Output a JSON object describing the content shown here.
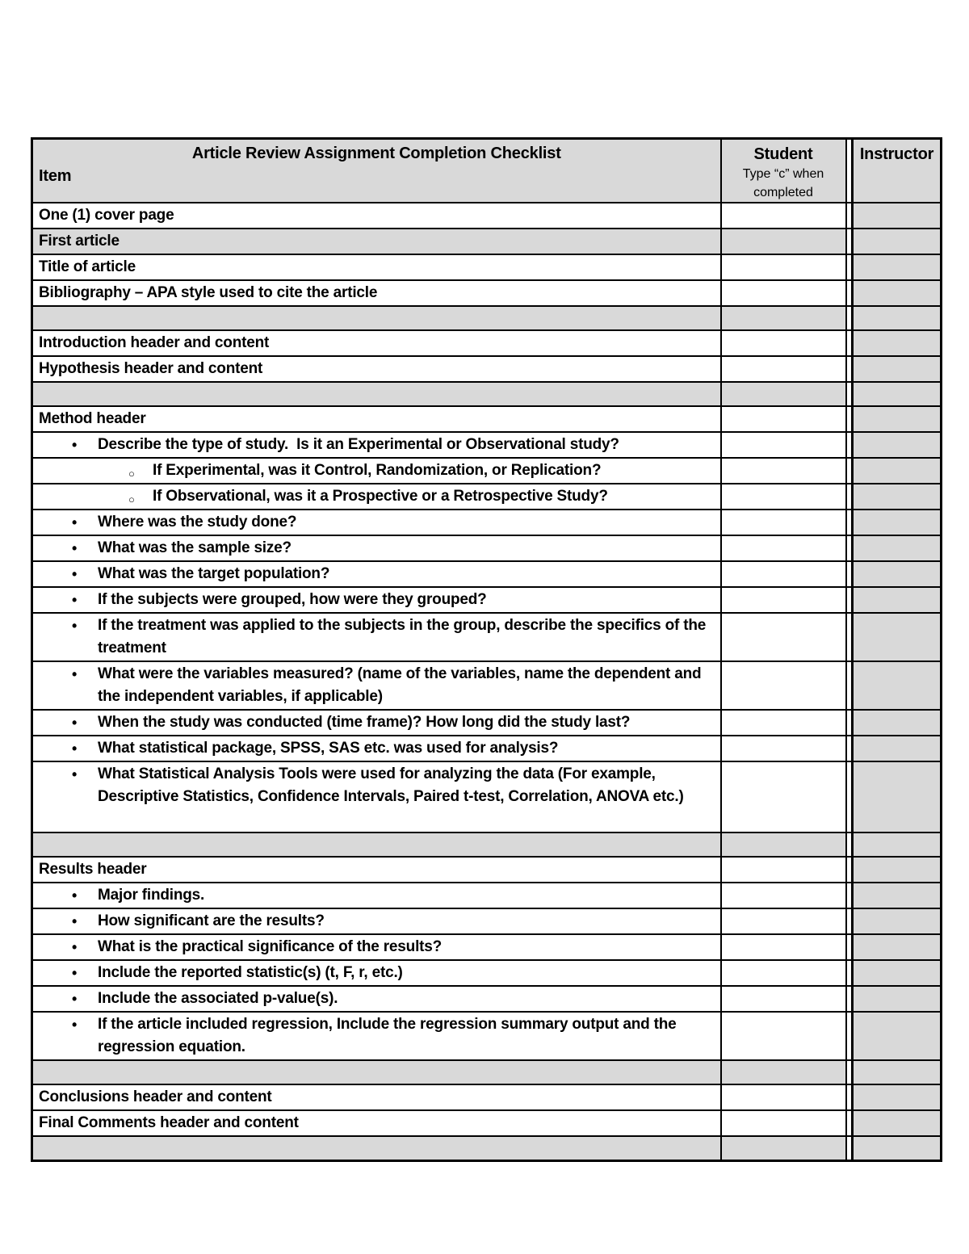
{
  "colors": {
    "shade": "#d9d9d9",
    "border": "#000000",
    "background": "#ffffff",
    "text": "#000000"
  },
  "markers": {
    "disc": "•",
    "circle": "○"
  },
  "header": {
    "title": "Article Review Assignment Completion Checklist",
    "item_label": "Item",
    "student_label": "Student",
    "student_note": "Type “c” when completed",
    "instructor_label": "Instructor"
  },
  "rows": [
    {
      "text": "One (1) cover page",
      "student": "",
      "instructor": ""
    },
    {
      "text": "First article",
      "shaded": true,
      "student": "",
      "instructor": ""
    },
    {
      "text": "Title of article",
      "student": "",
      "instructor": ""
    },
    {
      "text": "Bibliography – APA style used to cite the article",
      "student": "",
      "instructor": ""
    },
    {
      "text": "",
      "shaded": true,
      "student": "",
      "instructor": ""
    },
    {
      "text": "Introduction header and content",
      "student": "",
      "instructor": ""
    },
    {
      "text": "Hypothesis header and content",
      "student": "",
      "instructor": ""
    },
    {
      "text": "",
      "shaded": true,
      "student": "",
      "instructor": ""
    },
    {
      "text": "Method header",
      "student": "",
      "instructor": ""
    },
    {
      "text": "Describe the type of study.  Is it an Experimental or Observational study?",
      "bullet": "disc",
      "student": "",
      "instructor": ""
    },
    {
      "text": "If Experimental, was it Control, Randomization, or Replication?",
      "bullet": "circle",
      "student": "",
      "instructor": ""
    },
    {
      "text": "If Observational, was it a Prospective or a Retrospective Study?",
      "bullet": "circle",
      "student": "",
      "instructor": ""
    },
    {
      "text": "Where was the study done?",
      "bullet": "disc",
      "student": "",
      "instructor": ""
    },
    {
      "text": "What was the sample size?",
      "bullet": "disc",
      "student": "",
      "instructor": ""
    },
    {
      "text": "What was the target population?",
      "bullet": "disc",
      "student": "",
      "instructor": ""
    },
    {
      "text": "If the subjects were grouped, how were they grouped?",
      "bullet": "disc",
      "student": "",
      "instructor": ""
    },
    {
      "text": "If the treatment was applied to the subjects in the group, describe the specifics of the treatment",
      "bullet": "disc",
      "lines": 2,
      "student": "",
      "instructor": ""
    },
    {
      "text": "What were the variables measured? (name of the variables, name the dependent and the independent variables, if applicable)",
      "bullet": "disc",
      "lines": 2,
      "student": "",
      "instructor": ""
    },
    {
      "text": "When the study was conducted (time frame)? How long did the study last?",
      "bullet": "disc",
      "student": "",
      "instructor": ""
    },
    {
      "text": "What statistical package, SPSS, SAS etc. was used for analysis?",
      "bullet": "disc",
      "student": "",
      "instructor": ""
    },
    {
      "text": "What Statistical Analysis Tools were used for analyzing the data (For example, Descriptive Statistics, Confidence Intervals, Paired t-test, Correlation, ANOVA etc.)",
      "bullet": "disc",
      "lines": 3,
      "student": "",
      "instructor": ""
    },
    {
      "text": "",
      "shaded": true,
      "student": "",
      "instructor": ""
    },
    {
      "text": "Results header",
      "student": "",
      "instructor": ""
    },
    {
      "text": "Major findings.",
      "bullet": "disc",
      "student": "",
      "instructor": ""
    },
    {
      "text": "How significant are the results?",
      "bullet": "disc",
      "student": "",
      "instructor": ""
    },
    {
      "text": "What is the practical significance of the results?",
      "bullet": "disc",
      "student": "",
      "instructor": ""
    },
    {
      "text": "Include the reported statistic(s) (t, F, r, etc.)",
      "bullet": "disc",
      "student": "",
      "instructor": ""
    },
    {
      "text": "Include the associated p-value(s).",
      "bullet": "disc",
      "student": "",
      "instructor": ""
    },
    {
      "text": "If the article included regression, Include the regression summary output and the regression equation.",
      "bullet": "disc",
      "lines": 2,
      "student": "",
      "instructor": ""
    },
    {
      "text": "",
      "shaded": true,
      "student": "",
      "instructor": ""
    },
    {
      "text": "Conclusions header and content",
      "student": "",
      "instructor": ""
    },
    {
      "text": "Final Comments header and content",
      "student": "",
      "instructor": ""
    },
    {
      "text": "",
      "shaded": true,
      "student": "",
      "instructor": ""
    }
  ]
}
